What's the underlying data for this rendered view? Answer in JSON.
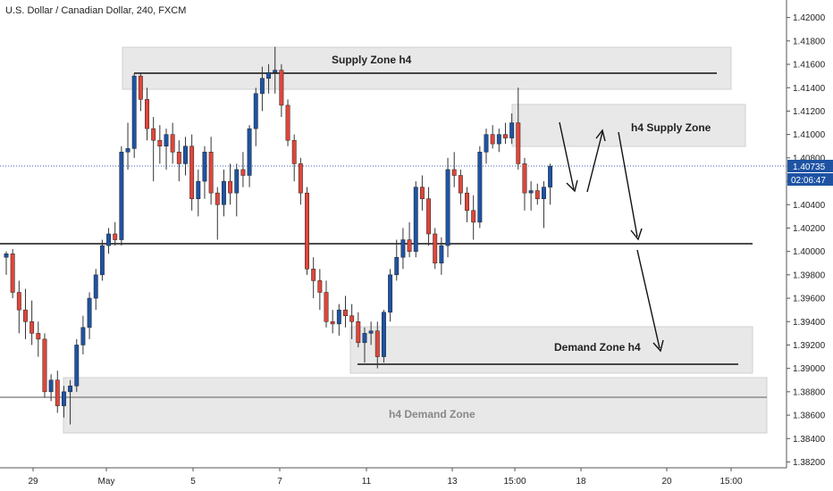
{
  "header": {
    "title": "U.S. Dollar / Canadian Dollar, 240, FXCM"
  },
  "price_axis": {
    "ticks": [
      "1.42000",
      "1.41800",
      "1.41600",
      "1.41400",
      "1.41200",
      "1.41000",
      "1.40800",
      "1.40600",
      "1.40400",
      "1.40200",
      "1.40000",
      "1.39800",
      "1.39600",
      "1.39400",
      "1.39200",
      "1.39000",
      "1.38800",
      "1.38600",
      "1.38400",
      "1.38200"
    ],
    "last_price": "1.40735",
    "countdown": "02:06:47"
  },
  "time_axis": {
    "ticks": [
      "29",
      "May",
      "5",
      "7",
      "11",
      "13",
      "15:00",
      "18",
      "20",
      "15:00"
    ]
  },
  "zones": {
    "supply_h4": "Supply Zone h4",
    "h4_supply": "h4 Supply Zone",
    "demand_h4": "Demand Zone h4",
    "h4_demand": "h4 Demand Zone"
  },
  "colors": {
    "up": "#1e53a4",
    "down": "#e0463a",
    "zone": "#e8e8e8",
    "zone_border": "#cfcfcf",
    "price_line": "#3b5fc0",
    "label_bg": "#1e53a4"
  },
  "chart_data": {
    "type": "candlestick",
    "title": "U.S. Dollar / Canadian Dollar, 240, FXCM",
    "ylim": [
      1.3815,
      1.4215
    ],
    "candles": [
      {
        "o": 1.3995,
        "h": 1.4,
        "l": 1.398,
        "c": 1.3998
      },
      {
        "o": 1.3998,
        "h": 1.4002,
        "l": 1.396,
        "c": 1.3965
      },
      {
        "o": 1.3965,
        "h": 1.3975,
        "l": 1.393,
        "c": 1.395
      },
      {
        "o": 1.395,
        "h": 1.3968,
        "l": 1.3925,
        "c": 1.394
      },
      {
        "o": 1.394,
        "h": 1.3958,
        "l": 1.392,
        "c": 1.393
      },
      {
        "o": 1.393,
        "h": 1.394,
        "l": 1.391,
        "c": 1.3925
      },
      {
        "o": 1.3925,
        "h": 1.393,
        "l": 1.3875,
        "c": 1.388
      },
      {
        "o": 1.388,
        "h": 1.3895,
        "l": 1.3872,
        "c": 1.389
      },
      {
        "o": 1.389,
        "h": 1.3898,
        "l": 1.3862,
        "c": 1.3868
      },
      {
        "o": 1.3868,
        "h": 1.3885,
        "l": 1.3858,
        "c": 1.388
      },
      {
        "o": 1.388,
        "h": 1.389,
        "l": 1.3852,
        "c": 1.3885
      },
      {
        "o": 1.3885,
        "h": 1.3925,
        "l": 1.388,
        "c": 1.392
      },
      {
        "o": 1.392,
        "h": 1.3945,
        "l": 1.3912,
        "c": 1.3935
      },
      {
        "o": 1.3935,
        "h": 1.3965,
        "l": 1.3925,
        "c": 1.396
      },
      {
        "o": 1.396,
        "h": 1.3985,
        "l": 1.395,
        "c": 1.398
      },
      {
        "o": 1.398,
        "h": 1.401,
        "l": 1.3975,
        "c": 1.4005
      },
      {
        "o": 1.4005,
        "h": 1.402,
        "l": 1.3998,
        "c": 1.4015
      },
      {
        "o": 1.4015,
        "h": 1.4025,
        "l": 1.4005,
        "c": 1.401
      },
      {
        "o": 1.401,
        "h": 1.409,
        "l": 1.4005,
        "c": 1.4085
      },
      {
        "o": 1.4085,
        "h": 1.411,
        "l": 1.407,
        "c": 1.4088
      },
      {
        "o": 1.4088,
        "h": 1.4152,
        "l": 1.408,
        "c": 1.415
      },
      {
        "o": 1.415,
        "h": 1.4152,
        "l": 1.412,
        "c": 1.413
      },
      {
        "o": 1.413,
        "h": 1.414,
        "l": 1.4095,
        "c": 1.4105
      },
      {
        "o": 1.4105,
        "h": 1.4115,
        "l": 1.406,
        "c": 1.4095
      },
      {
        "o": 1.4095,
        "h": 1.4108,
        "l": 1.4075,
        "c": 1.409
      },
      {
        "o": 1.409,
        "h": 1.4105,
        "l": 1.407,
        "c": 1.41
      },
      {
        "o": 1.41,
        "h": 1.411,
        "l": 1.4075,
        "c": 1.4085
      },
      {
        "o": 1.4085,
        "h": 1.4095,
        "l": 1.406,
        "c": 1.4075
      },
      {
        "o": 1.4075,
        "h": 1.4098,
        "l": 1.4065,
        "c": 1.409
      },
      {
        "o": 1.409,
        "h": 1.41,
        "l": 1.4035,
        "c": 1.4045
      },
      {
        "o": 1.4045,
        "h": 1.407,
        "l": 1.403,
        "c": 1.406
      },
      {
        "o": 1.406,
        "h": 1.409,
        "l": 1.4045,
        "c": 1.4085
      },
      {
        "o": 1.4085,
        "h": 1.4098,
        "l": 1.404,
        "c": 1.405
      },
      {
        "o": 1.405,
        "h": 1.4055,
        "l": 1.401,
        "c": 1.404
      },
      {
        "o": 1.404,
        "h": 1.407,
        "l": 1.403,
        "c": 1.406
      },
      {
        "o": 1.406,
        "h": 1.4075,
        "l": 1.404,
        "c": 1.405
      },
      {
        "o": 1.405,
        "h": 1.4075,
        "l": 1.403,
        "c": 1.407
      },
      {
        "o": 1.407,
        "h": 1.4085,
        "l": 1.4055,
        "c": 1.4065
      },
      {
        "o": 1.4065,
        "h": 1.4108,
        "l": 1.4055,
        "c": 1.4105
      },
      {
        "o": 1.4105,
        "h": 1.414,
        "l": 1.409,
        "c": 1.4135
      },
      {
        "o": 1.4135,
        "h": 1.4158,
        "l": 1.412,
        "c": 1.4148
      },
      {
        "o": 1.4148,
        "h": 1.416,
        "l": 1.4135,
        "c": 1.4153
      },
      {
        "o": 1.4153,
        "h": 1.4175,
        "l": 1.4135,
        "c": 1.4155
      },
      {
        "o": 1.4155,
        "h": 1.416,
        "l": 1.4115,
        "c": 1.4125
      },
      {
        "o": 1.4125,
        "h": 1.413,
        "l": 1.409,
        "c": 1.4095
      },
      {
        "o": 1.4095,
        "h": 1.41,
        "l": 1.406,
        "c": 1.4075
      },
      {
        "o": 1.4075,
        "h": 1.408,
        "l": 1.404,
        "c": 1.405
      },
      {
        "o": 1.405,
        "h": 1.4055,
        "l": 1.398,
        "c": 1.3985
      },
      {
        "o": 1.3985,
        "h": 1.3995,
        "l": 1.396,
        "c": 1.3975
      },
      {
        "o": 1.3975,
        "h": 1.3985,
        "l": 1.395,
        "c": 1.3965
      },
      {
        "o": 1.3965,
        "h": 1.3975,
        "l": 1.3935,
        "c": 1.394
      },
      {
        "o": 1.394,
        "h": 1.395,
        "l": 1.393,
        "c": 1.3938
      },
      {
        "o": 1.3938,
        "h": 1.3955,
        "l": 1.3928,
        "c": 1.395
      },
      {
        "o": 1.395,
        "h": 1.3962,
        "l": 1.3935,
        "c": 1.3945
      },
      {
        "o": 1.3945,
        "h": 1.3955,
        "l": 1.3925,
        "c": 1.394
      },
      {
        "o": 1.394,
        "h": 1.3948,
        "l": 1.3918,
        "c": 1.3922
      },
      {
        "o": 1.3922,
        "h": 1.3935,
        "l": 1.3905,
        "c": 1.393
      },
      {
        "o": 1.393,
        "h": 1.394,
        "l": 1.392,
        "c": 1.3932
      },
      {
        "o": 1.3932,
        "h": 1.394,
        "l": 1.39,
        "c": 1.391
      },
      {
        "o": 1.391,
        "h": 1.395,
        "l": 1.3905,
        "c": 1.3948
      },
      {
        "o": 1.3948,
        "h": 1.3985,
        "l": 1.394,
        "c": 1.398
      },
      {
        "o": 1.398,
        "h": 1.401,
        "l": 1.3975,
        "c": 1.3995
      },
      {
        "o": 1.3995,
        "h": 1.402,
        "l": 1.3985,
        "c": 1.401
      },
      {
        "o": 1.401,
        "h": 1.4025,
        "l": 1.3995,
        "c": 1.4
      },
      {
        "o": 1.4,
        "h": 1.406,
        "l": 1.3995,
        "c": 1.4055
      },
      {
        "o": 1.4055,
        "h": 1.4065,
        "l": 1.4035,
        "c": 1.4045
      },
      {
        "o": 1.4045,
        "h": 1.4055,
        "l": 1.4005,
        "c": 1.4015
      },
      {
        "o": 1.4015,
        "h": 1.402,
        "l": 1.3985,
        "c": 1.399
      },
      {
        "o": 1.399,
        "h": 1.4012,
        "l": 1.398,
        "c": 1.4005
      },
      {
        "o": 1.4005,
        "h": 1.408,
        "l": 1.3995,
        "c": 1.407
      },
      {
        "o": 1.407,
        "h": 1.4085,
        "l": 1.4055,
        "c": 1.4065
      },
      {
        "o": 1.4065,
        "h": 1.407,
        "l": 1.404,
        "c": 1.405
      },
      {
        "o": 1.405,
        "h": 1.4055,
        "l": 1.4025,
        "c": 1.4035
      },
      {
        "o": 1.4035,
        "h": 1.4048,
        "l": 1.401,
        "c": 1.4025
      },
      {
        "o": 1.4025,
        "h": 1.409,
        "l": 1.402,
        "c": 1.4085
      },
      {
        "o": 1.4085,
        "h": 1.4105,
        "l": 1.4075,
        "c": 1.41
      },
      {
        "o": 1.41,
        "h": 1.4108,
        "l": 1.4088,
        "c": 1.4092
      },
      {
        "o": 1.4092,
        "h": 1.4105,
        "l": 1.4085,
        "c": 1.41
      },
      {
        "o": 1.41,
        "h": 1.411,
        "l": 1.4092,
        "c": 1.4097
      },
      {
        "o": 1.4097,
        "h": 1.4118,
        "l": 1.4092,
        "c": 1.411
      },
      {
        "o": 1.411,
        "h": 1.414,
        "l": 1.407,
        "c": 1.4075
      },
      {
        "o": 1.4075,
        "h": 1.408,
        "l": 1.4035,
        "c": 1.405
      },
      {
        "o": 1.405,
        "h": 1.406,
        "l": 1.4035,
        "c": 1.4052
      },
      {
        "o": 1.4052,
        "h": 1.4058,
        "l": 1.404,
        "c": 1.4045
      },
      {
        "o": 1.4045,
        "h": 1.406,
        "l": 1.402,
        "c": 1.4055
      },
      {
        "o": 1.4055,
        "h": 1.4075,
        "l": 1.404,
        "c": 1.4073
      }
    ],
    "levels": [
      1.4152,
      1.401,
      1.3908,
      1.388
    ],
    "zones": [
      {
        "name": "Supply Zone h4",
        "from": 1.414,
        "to": 1.417
      },
      {
        "name": "h4 Supply Zone",
        "from": 1.4092,
        "to": 1.4125
      },
      {
        "name": "Demand Zone h4",
        "from": 1.39,
        "to": 1.3937
      },
      {
        "name": "h4 Demand Zone",
        "from": 1.385,
        "to": 1.3885
      }
    ],
    "current_price": 1.40735
  }
}
